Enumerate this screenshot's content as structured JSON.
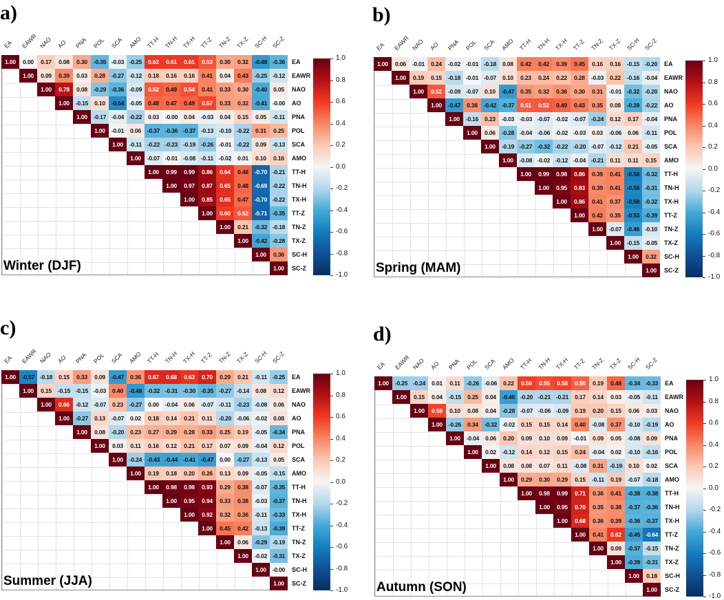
{
  "chart_data": {
    "type": "heatmap",
    "variables": [
      "EA",
      "EAWR",
      "NAO",
      "AO",
      "PNA",
      "POL",
      "SCA",
      "AMO",
      "TT-H",
      "TN-H",
      "TX-H",
      "TT-Z",
      "TN-Z",
      "TX-Z",
      "SC-H",
      "SC-Z"
    ],
    "colorbar": {
      "range": [
        -1.0,
        1.0
      ],
      "ticks": [
        "1.0",
        "0.8",
        "0.6",
        "0.4",
        "0.2",
        "0.0",
        "-0.2",
        "-0.4",
        "-0.6",
        "-0.8",
        "-1.0"
      ],
      "tick_values": [
        1,
        0.8,
        0.6,
        0.4,
        0.2,
        0,
        -0.2,
        -0.4,
        -0.6,
        -0.8,
        -1
      ]
    },
    "colors": {
      "neg_max": "#053061",
      "zero": "#f5f5f5",
      "pos_max": "#67001f"
    },
    "panels": [
      {
        "label": "a)",
        "title": "Winter (DJF)",
        "rows": [
          {
            "label": "EA",
            "values": [
              1.0,
              0.0,
              0.17,
              0.08,
              0.3,
              -0.35,
              -0.03,
              -0.25,
              0.62,
              0.61,
              0.61,
              0.53,
              0.3,
              0.32,
              -0.48,
              -0.36
            ]
          },
          {
            "label": "EAWR",
            "values": [
              1.0,
              0.09,
              0.39,
              0.03,
              0.28,
              -0.27,
              -0.12,
              0.18,
              0.16,
              0.16,
              0.41,
              0.04,
              0.43,
              -0.25,
              -0.12
            ]
          },
          {
            "label": "NAO",
            "values": [
              1.0,
              0.78,
              0.08,
              -0.29,
              -0.36,
              -0.09,
              0.52,
              0.49,
              0.54,
              0.41,
              0.33,
              0.3,
              -0.4,
              0.05
            ]
          },
          {
            "label": "AO",
            "values": [
              1.0,
              -0.15,
              0.1,
              -0.54,
              -0.05,
              0.48,
              0.47,
              0.49,
              0.57,
              0.33,
              0.32,
              -0.41,
              -0.0
            ]
          },
          {
            "label": "PNA",
            "values": [
              1.0,
              -0.17,
              -0.04,
              -0.22,
              0.03,
              -0.0,
              0.04,
              -0.03,
              0.04,
              0.15,
              0.05,
              -0.11
            ]
          },
          {
            "label": "POL",
            "values": [
              1.0,
              -0.01,
              0.06,
              -0.37,
              -0.36,
              -0.37,
              -0.13,
              -0.1,
              -0.22,
              0.31,
              0.25
            ]
          },
          {
            "label": "SCA",
            "values": [
              1.0,
              -0.11,
              -0.22,
              -0.23,
              -0.19,
              -0.26,
              -0.01,
              -0.22,
              0.09,
              -0.13
            ]
          },
          {
            "label": "AMO",
            "values": [
              1.0,
              -0.07,
              -0.01,
              -0.08,
              -0.11,
              -0.02,
              0.01,
              0.1,
              0.16
            ]
          },
          {
            "label": "TT-H",
            "values": [
              1.0,
              0.99,
              0.99,
              0.86,
              0.64,
              0.48,
              -0.7,
              -0.21
            ]
          },
          {
            "label": "TN-H",
            "values": [
              1.0,
              0.97,
              0.87,
              0.65,
              0.48,
              -0.69,
              -0.22
            ]
          },
          {
            "label": "TX-H",
            "values": [
              1.0,
              0.85,
              0.65,
              0.47,
              -0.7,
              -0.22
            ]
          },
          {
            "label": "TT-Z",
            "values": [
              1.0,
              0.6,
              0.52,
              -0.71,
              -0.35
            ]
          },
          {
            "label": "TN-Z",
            "values": [
              1.0,
              0.21,
              -0.32,
              -0.18
            ]
          },
          {
            "label": "TX-Z",
            "values": [
              1.0,
              -0.42,
              -0.28
            ]
          },
          {
            "label": "SC-H",
            "values": [
              1.0,
              0.36
            ]
          },
          {
            "label": "SC-Z",
            "values": [
              1.0
            ]
          }
        ]
      },
      {
        "label": "b)",
        "title": "Spring (MAM)",
        "rows": [
          {
            "label": "EA",
            "values": [
              1.0,
              0.06,
              -0.01,
              0.24,
              -0.02,
              -0.01,
              -0.18,
              0.08,
              0.42,
              0.42,
              0.39,
              0.45,
              0.16,
              0.16,
              -0.15,
              -0.2
            ]
          },
          {
            "label": "EAWR",
            "values": [
              1.0,
              0.19,
              0.15,
              -0.18,
              -0.01,
              -0.07,
              0.1,
              0.23,
              0.24,
              0.22,
              0.28,
              -0.03,
              0.22,
              -0.16,
              -0.04
            ]
          },
          {
            "label": "NAO",
            "values": [
              1.0,
              0.52,
              -0.09,
              -0.07,
              0.1,
              -0.47,
              0.35,
              0.32,
              0.36,
              0.3,
              0.31,
              -0.01,
              -0.32,
              -0.2
            ]
          },
          {
            "label": "AO",
            "values": [
              1.0,
              -0.47,
              0.38,
              -0.42,
              -0.37,
              0.51,
              0.52,
              0.49,
              0.43,
              0.35,
              0.08,
              -0.39,
              -0.22
            ]
          },
          {
            "label": "PNA",
            "values": [
              1.0,
              -0.16,
              0.23,
              -0.03,
              -0.03,
              -0.07,
              -0.02,
              -0.07,
              -0.24,
              0.12,
              0.17,
              -0.04
            ]
          },
          {
            "label": "POL",
            "values": [
              1.0,
              0.06,
              -0.28,
              -0.04,
              -0.06,
              -0.02,
              -0.03,
              0.03,
              -0.06,
              0.06,
              -0.11
            ]
          },
          {
            "label": "SCA",
            "values": [
              1.0,
              -0.19,
              -0.27,
              -0.32,
              -0.22,
              -0.2,
              -0.07,
              -0.12,
              0.21,
              -0.05
            ]
          },
          {
            "label": "AMO",
            "values": [
              1.0,
              -0.08,
              -0.02,
              -0.12,
              -0.04,
              -0.21,
              0.11,
              0.11,
              0.15
            ]
          },
          {
            "label": "TT-H",
            "values": [
              1.0,
              0.99,
              0.98,
              0.86,
              0.39,
              0.41,
              -0.58,
              -0.32
            ]
          },
          {
            "label": "TN-H",
            "values": [
              1.0,
              0.95,
              0.83,
              0.39,
              0.41,
              -0.56,
              -0.31
            ]
          },
          {
            "label": "TX-H",
            "values": [
              1.0,
              0.86,
              0.41,
              0.37,
              -0.58,
              -0.32
            ]
          },
          {
            "label": "TT-Z",
            "values": [
              1.0,
              0.42,
              0.35,
              -0.53,
              -0.39
            ]
          },
          {
            "label": "TN-Z",
            "values": [
              1.0,
              -0.07,
              -0.46,
              -0.1
            ]
          },
          {
            "label": "TX-Z",
            "values": [
              1.0,
              -0.15,
              -0.05
            ]
          },
          {
            "label": "SC-H",
            "values": [
              1.0,
              0.32
            ]
          },
          {
            "label": "SC-Z",
            "values": [
              1.0
            ]
          }
        ]
      },
      {
        "label": "c)",
        "title": "Summer (JJA)",
        "rows": [
          {
            "label": "EA",
            "values": [
              1.0,
              -0.57,
              -0.18,
              0.15,
              0.33,
              0.09,
              -0.47,
              0.36,
              0.67,
              0.68,
              0.63,
              0.7,
              0.29,
              0.21,
              -0.11,
              -0.25
            ]
          },
          {
            "label": "EAWR",
            "values": [
              1.0,
              0.15,
              -0.15,
              -0.15,
              -0.03,
              0.4,
              -0.48,
              -0.32,
              -0.31,
              -0.3,
              -0.35,
              -0.27,
              -0.14,
              0.08,
              0.12
            ]
          },
          {
            "label": "NAO",
            "values": [
              1.0,
              0.66,
              -0.12,
              -0.07,
              0.23,
              -0.27,
              0.0,
              -0.04,
              0.06,
              -0.07,
              -0.11,
              -0.23,
              -0.08,
              0.06
            ]
          },
          {
            "label": "AO",
            "values": [
              1.0,
              -0.27,
              0.13,
              -0.07,
              0.02,
              0.18,
              0.14,
              0.21,
              0.11,
              -0.2,
              -0.06,
              -0.02,
              0.08
            ]
          },
          {
            "label": "PNA",
            "values": [
              1.0,
              0.08,
              -0.2,
              0.23,
              0.27,
              0.29,
              0.28,
              0.33,
              0.25,
              0.19,
              -0.05,
              -0.34
            ]
          },
          {
            "label": "POL",
            "values": [
              1.0,
              0.03,
              0.11,
              0.16,
              0.12,
              0.21,
              0.17,
              0.07,
              0.09,
              -0.04,
              0.12
            ]
          },
          {
            "label": "SCA",
            "values": [
              1.0,
              -0.24,
              -0.43,
              -0.44,
              -0.41,
              -0.47,
              0.0,
              -0.27,
              -0.13,
              0.05
            ]
          },
          {
            "label": "AMO",
            "values": [
              1.0,
              0.19,
              0.18,
              0.2,
              0.26,
              0.13,
              0.09,
              -0.05,
              -0.15
            ]
          },
          {
            "label": "TT-H",
            "values": [
              1.0,
              0.98,
              0.98,
              0.93,
              0.29,
              0.38,
              -0.07,
              -0.35
            ]
          },
          {
            "label": "TN-H",
            "values": [
              1.0,
              0.95,
              0.94,
              0.33,
              0.38,
              -0.03,
              -0.37
            ]
          },
          {
            "label": "TX-H",
            "values": [
              1.0,
              0.92,
              0.32,
              0.36,
              -0.11,
              -0.33
            ]
          },
          {
            "label": "TT-Z",
            "values": [
              1.0,
              0.45,
              0.42,
              -0.13,
              -0.39
            ]
          },
          {
            "label": "TN-Z",
            "values": [
              1.0,
              0.06,
              -0.29,
              -0.19
            ]
          },
          {
            "label": "TX-Z",
            "values": [
              1.0,
              -0.02,
              -0.31
            ]
          },
          {
            "label": "SC-H",
            "values": [
              1.0,
              -0.0
            ]
          },
          {
            "label": "SC-Z",
            "values": [
              1.0
            ]
          }
        ]
      },
      {
        "label": "d)",
        "title": "Autumn (SON)",
        "rows": [
          {
            "label": "EA",
            "values": [
              1.0,
              -0.25,
              -0.24,
              0.01,
              0.11,
              -0.26,
              -0.06,
              0.22,
              0.59,
              0.55,
              0.58,
              0.5,
              0.19,
              0.48,
              -0.34,
              -0.33
            ]
          },
          {
            "label": "EAWR",
            "values": [
              1.0,
              0.15,
              0.04,
              -0.15,
              0.25,
              0.04,
              -0.46,
              -0.2,
              -0.21,
              -0.21,
              0.17,
              0.14,
              0.03,
              -0.05,
              -0.11
            ]
          },
          {
            "label": "NAO",
            "values": [
              1.0,
              0.58,
              0.1,
              0.08,
              0.04,
              -0.28,
              -0.07,
              -0.06,
              -0.09,
              0.19,
              0.2,
              0.15,
              0.06,
              0.03
            ]
          },
          {
            "label": "AO",
            "values": [
              1.0,
              -0.26,
              0.34,
              -0.32,
              -0.02,
              0.15,
              0.15,
              0.14,
              0.4,
              -0.08,
              0.37,
              -0.1,
              -0.19
            ]
          },
          {
            "label": "PNA",
            "values": [
              1.0,
              -0.04,
              0.06,
              0.2,
              0.09,
              0.1,
              0.09,
              -0.01,
              0.09,
              0.05,
              -0.08,
              0.09
            ]
          },
          {
            "label": "POL",
            "values": [
              1.0,
              0.02,
              -0.12,
              0.14,
              0.12,
              0.15,
              0.24,
              -0.04,
              0.02,
              -0.1,
              -0.16
            ]
          },
          {
            "label": "SCA",
            "values": [
              1.0,
              0.08,
              0.08,
              0.07,
              0.11,
              -0.08,
              0.31,
              -0.19,
              0.1,
              0.02
            ]
          },
          {
            "label": "AMO",
            "values": [
              1.0,
              0.29,
              0.3,
              0.29,
              0.15,
              -0.11,
              0.19,
              -0.07,
              -0.18
            ]
          },
          {
            "label": "TT-H",
            "values": [
              1.0,
              0.98,
              0.99,
              0.71,
              0.36,
              0.41,
              -0.38,
              -0.38
            ]
          },
          {
            "label": "TN-H",
            "values": [
              1.0,
              0.95,
              0.7,
              0.35,
              0.38,
              -0.37,
              -0.36
            ]
          },
          {
            "label": "TX-H",
            "values": [
              1.0,
              0.68,
              0.36,
              0.39,
              -0.36,
              -0.37
            ]
          },
          {
            "label": "TT-Z",
            "values": [
              1.0,
              0.41,
              0.62,
              -0.45,
              -0.64
            ]
          },
          {
            "label": "TN-Z",
            "values": [
              1.0,
              0.09,
              -0.37,
              -0.15
            ]
          },
          {
            "label": "TX-Z",
            "values": [
              1.0,
              -0.39,
              -0.31
            ]
          },
          {
            "label": "SC-H",
            "values": [
              1.0,
              0.18
            ]
          },
          {
            "label": "SC-Z",
            "values": [
              1.0
            ]
          }
        ]
      }
    ]
  }
}
